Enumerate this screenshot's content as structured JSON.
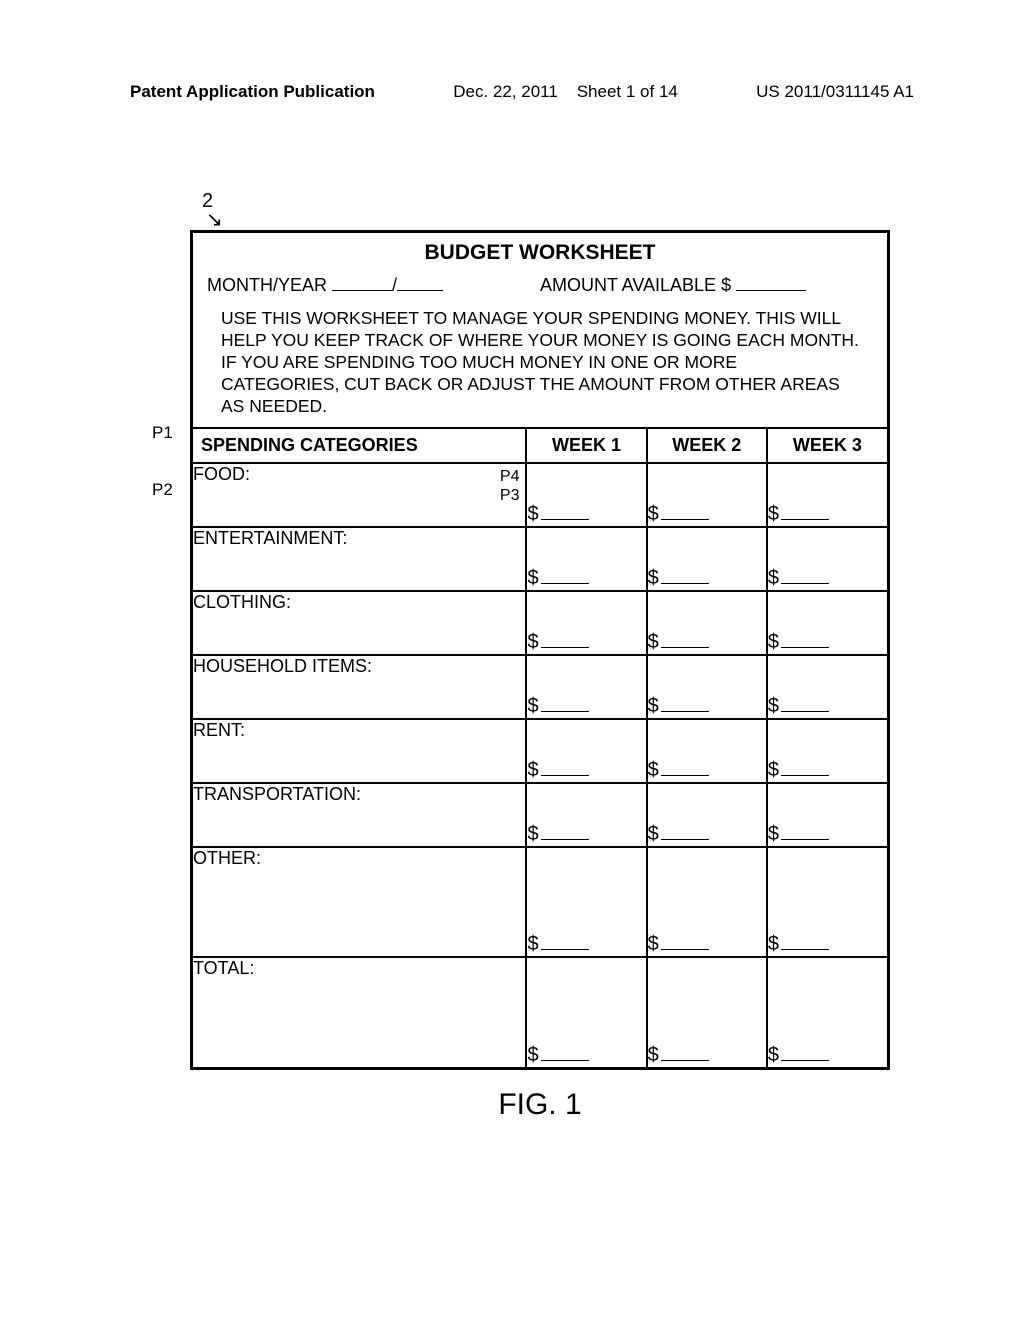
{
  "header": {
    "left": "Patent Application Publication",
    "date": "Dec. 22, 2011",
    "sheet": "Sheet 1 of 14",
    "pubno": "US 2011/0311145 A1"
  },
  "refnum": "2",
  "worksheet": {
    "title": "BUDGET WORKSHEET",
    "month_year_label": "MONTH/YEAR",
    "amount_label": "AMOUNT AVAILABLE $",
    "instructions": "USE THIS WORKSHEET TO MANAGE YOUR SPENDING MONEY. THIS WILL HELP YOU KEEP TRACK OF WHERE YOUR MONEY IS GOING EACH MONTH. IF YOU ARE SPENDING TOO MUCH MONEY IN ONE OR MORE CATEGORIES, CUT BACK OR ADJUST THE AMOUNT FROM OTHER AREAS AS NEEDED.",
    "col_headers": {
      "cat": "SPENDING CATEGORIES",
      "w1": "WEEK 1",
      "w2": "WEEK 2",
      "w3": "WEEK 3"
    },
    "rows": [
      {
        "label": "FOOD:",
        "marks": [
          "P4",
          "P3"
        ],
        "tall": false
      },
      {
        "label": "ENTERTAINMENT:",
        "marks": [],
        "tall": false
      },
      {
        "label": "CLOTHING:",
        "marks": [],
        "tall": false
      },
      {
        "label": "HOUSEHOLD ITEMS:",
        "marks": [],
        "tall": false
      },
      {
        "label": "RENT:",
        "marks": [],
        "tall": false
      },
      {
        "label": "TRANSPORTATION:",
        "marks": [],
        "tall": false
      },
      {
        "label": "OTHER:",
        "marks": [],
        "tall": true
      },
      {
        "label": "TOTAL:",
        "marks": [],
        "tall": true
      }
    ],
    "side_labels": {
      "p1": "P1",
      "p2": "P2"
    },
    "dollar": "$"
  },
  "figure_caption": "FIG. 1",
  "style": {
    "border_color": "#000000",
    "bg": "#ffffff",
    "font_main": "Arial"
  }
}
